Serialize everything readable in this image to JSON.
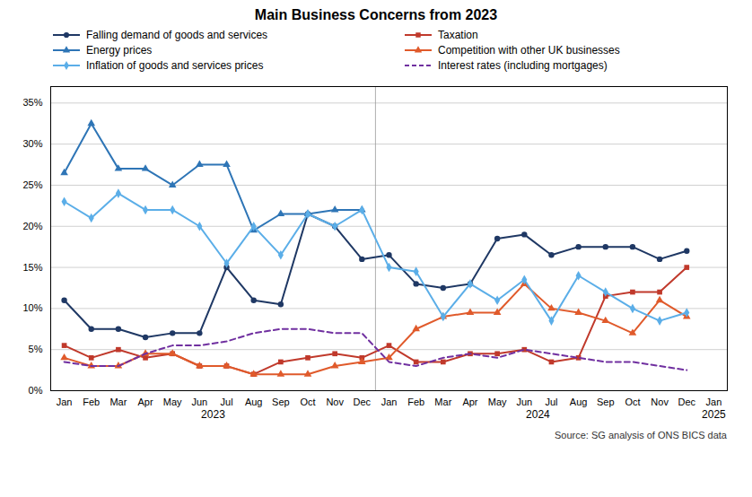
{
  "chart_data": {
    "type": "line",
    "title": "Main Business Concerns from 2023",
    "source": "Source: SG analysis of ONS BICS data",
    "categories": [
      "Jan",
      "Feb",
      "Mar",
      "Apr",
      "May",
      "Jun",
      "Jul",
      "Aug",
      "Sep",
      "Oct",
      "Nov",
      "Dec",
      "Jan",
      "Feb",
      "Mar",
      "Apr",
      "May",
      "Jun",
      "Jul",
      "Aug",
      "Sep",
      "Oct",
      "Nov",
      "Dec",
      "Jan"
    ],
    "groups": [
      {
        "label": "2023",
        "first": 0,
        "last": 11
      },
      {
        "label": "2024",
        "first": 12,
        "last": 23,
        "divider": true
      },
      {
        "label": "2025",
        "first": 24,
        "last": 24
      }
    ],
    "series": [
      {
        "name": "Falling demand of goods and services",
        "color": "#1f3864",
        "marker": "circle",
        "line_style": "solid",
        "values": [
          11,
          7.5,
          7.5,
          6.5,
          7,
          7,
          15,
          11,
          10.5,
          21.5,
          20,
          16,
          16.5,
          13,
          12.5,
          13,
          18.5,
          19,
          16.5,
          17.5,
          17.5,
          17.5,
          16,
          17,
          null
        ]
      },
      {
        "name": "Taxation",
        "color": "#c0392b",
        "marker": "square",
        "line_style": "solid",
        "values": [
          5.5,
          4,
          5,
          4,
          4.5,
          3,
          3,
          2,
          3.5,
          4,
          4.5,
          4,
          5.5,
          3.5,
          3.5,
          4.5,
          4.5,
          5,
          3.5,
          4,
          11.5,
          12,
          12,
          15,
          null
        ]
      },
      {
        "name": "Energy prices",
        "color": "#2e75b6",
        "marker": "triangle",
        "line_style": "solid",
        "values": [
          26.5,
          32.5,
          27,
          27,
          25,
          27.5,
          27.5,
          19.5,
          21.5,
          21.5,
          22,
          22,
          null,
          null,
          null,
          null,
          null,
          null,
          null,
          null,
          null,
          null,
          null,
          null,
          null
        ]
      },
      {
        "name": "Competition with other UK businesses",
        "color": "#e05a2b",
        "marker": "triangle",
        "line_style": "solid",
        "values": [
          4,
          3,
          3,
          4.5,
          4.5,
          3,
          3,
          2,
          2,
          2,
          3,
          3.5,
          4,
          7.5,
          9,
          9.5,
          9.5,
          13,
          10,
          9.5,
          8.5,
          7,
          11,
          9,
          null
        ]
      },
      {
        "name": "Inflation of goods and services prices",
        "color": "#5baee8",
        "marker": "diamond",
        "line_style": "solid",
        "values": [
          23,
          21,
          24,
          22,
          22,
          20,
          15.5,
          20,
          16.5,
          21.5,
          20,
          22,
          15,
          14.5,
          9,
          13,
          11,
          13.5,
          8.5,
          14,
          12,
          10,
          8.5,
          9.5,
          null
        ]
      },
      {
        "name": "Interest rates (including mortgages)",
        "color": "#7030a0",
        "marker": "none",
        "line_style": "dashed",
        "values": [
          3.5,
          3,
          3,
          4.5,
          5.5,
          5.5,
          6,
          7,
          7.5,
          7.5,
          7,
          7,
          3.5,
          3,
          4,
          4.5,
          4,
          5,
          4.5,
          4,
          3.5,
          3.5,
          3,
          2.5,
          null
        ]
      }
    ],
    "ylim": [
      0,
      37
    ],
    "yticks": [
      {
        "value": 0,
        "label": "0%"
      },
      {
        "value": 5,
        "label": "5%"
      },
      {
        "value": 10,
        "label": "10%"
      },
      {
        "value": 15,
        "label": "15%"
      },
      {
        "value": 20,
        "label": "20%"
      },
      {
        "value": 25,
        "label": "25%"
      },
      {
        "value": 30,
        "label": "30%"
      },
      {
        "value": 35,
        "label": "35%"
      }
    ],
    "grid": "y",
    "legend": "top"
  }
}
